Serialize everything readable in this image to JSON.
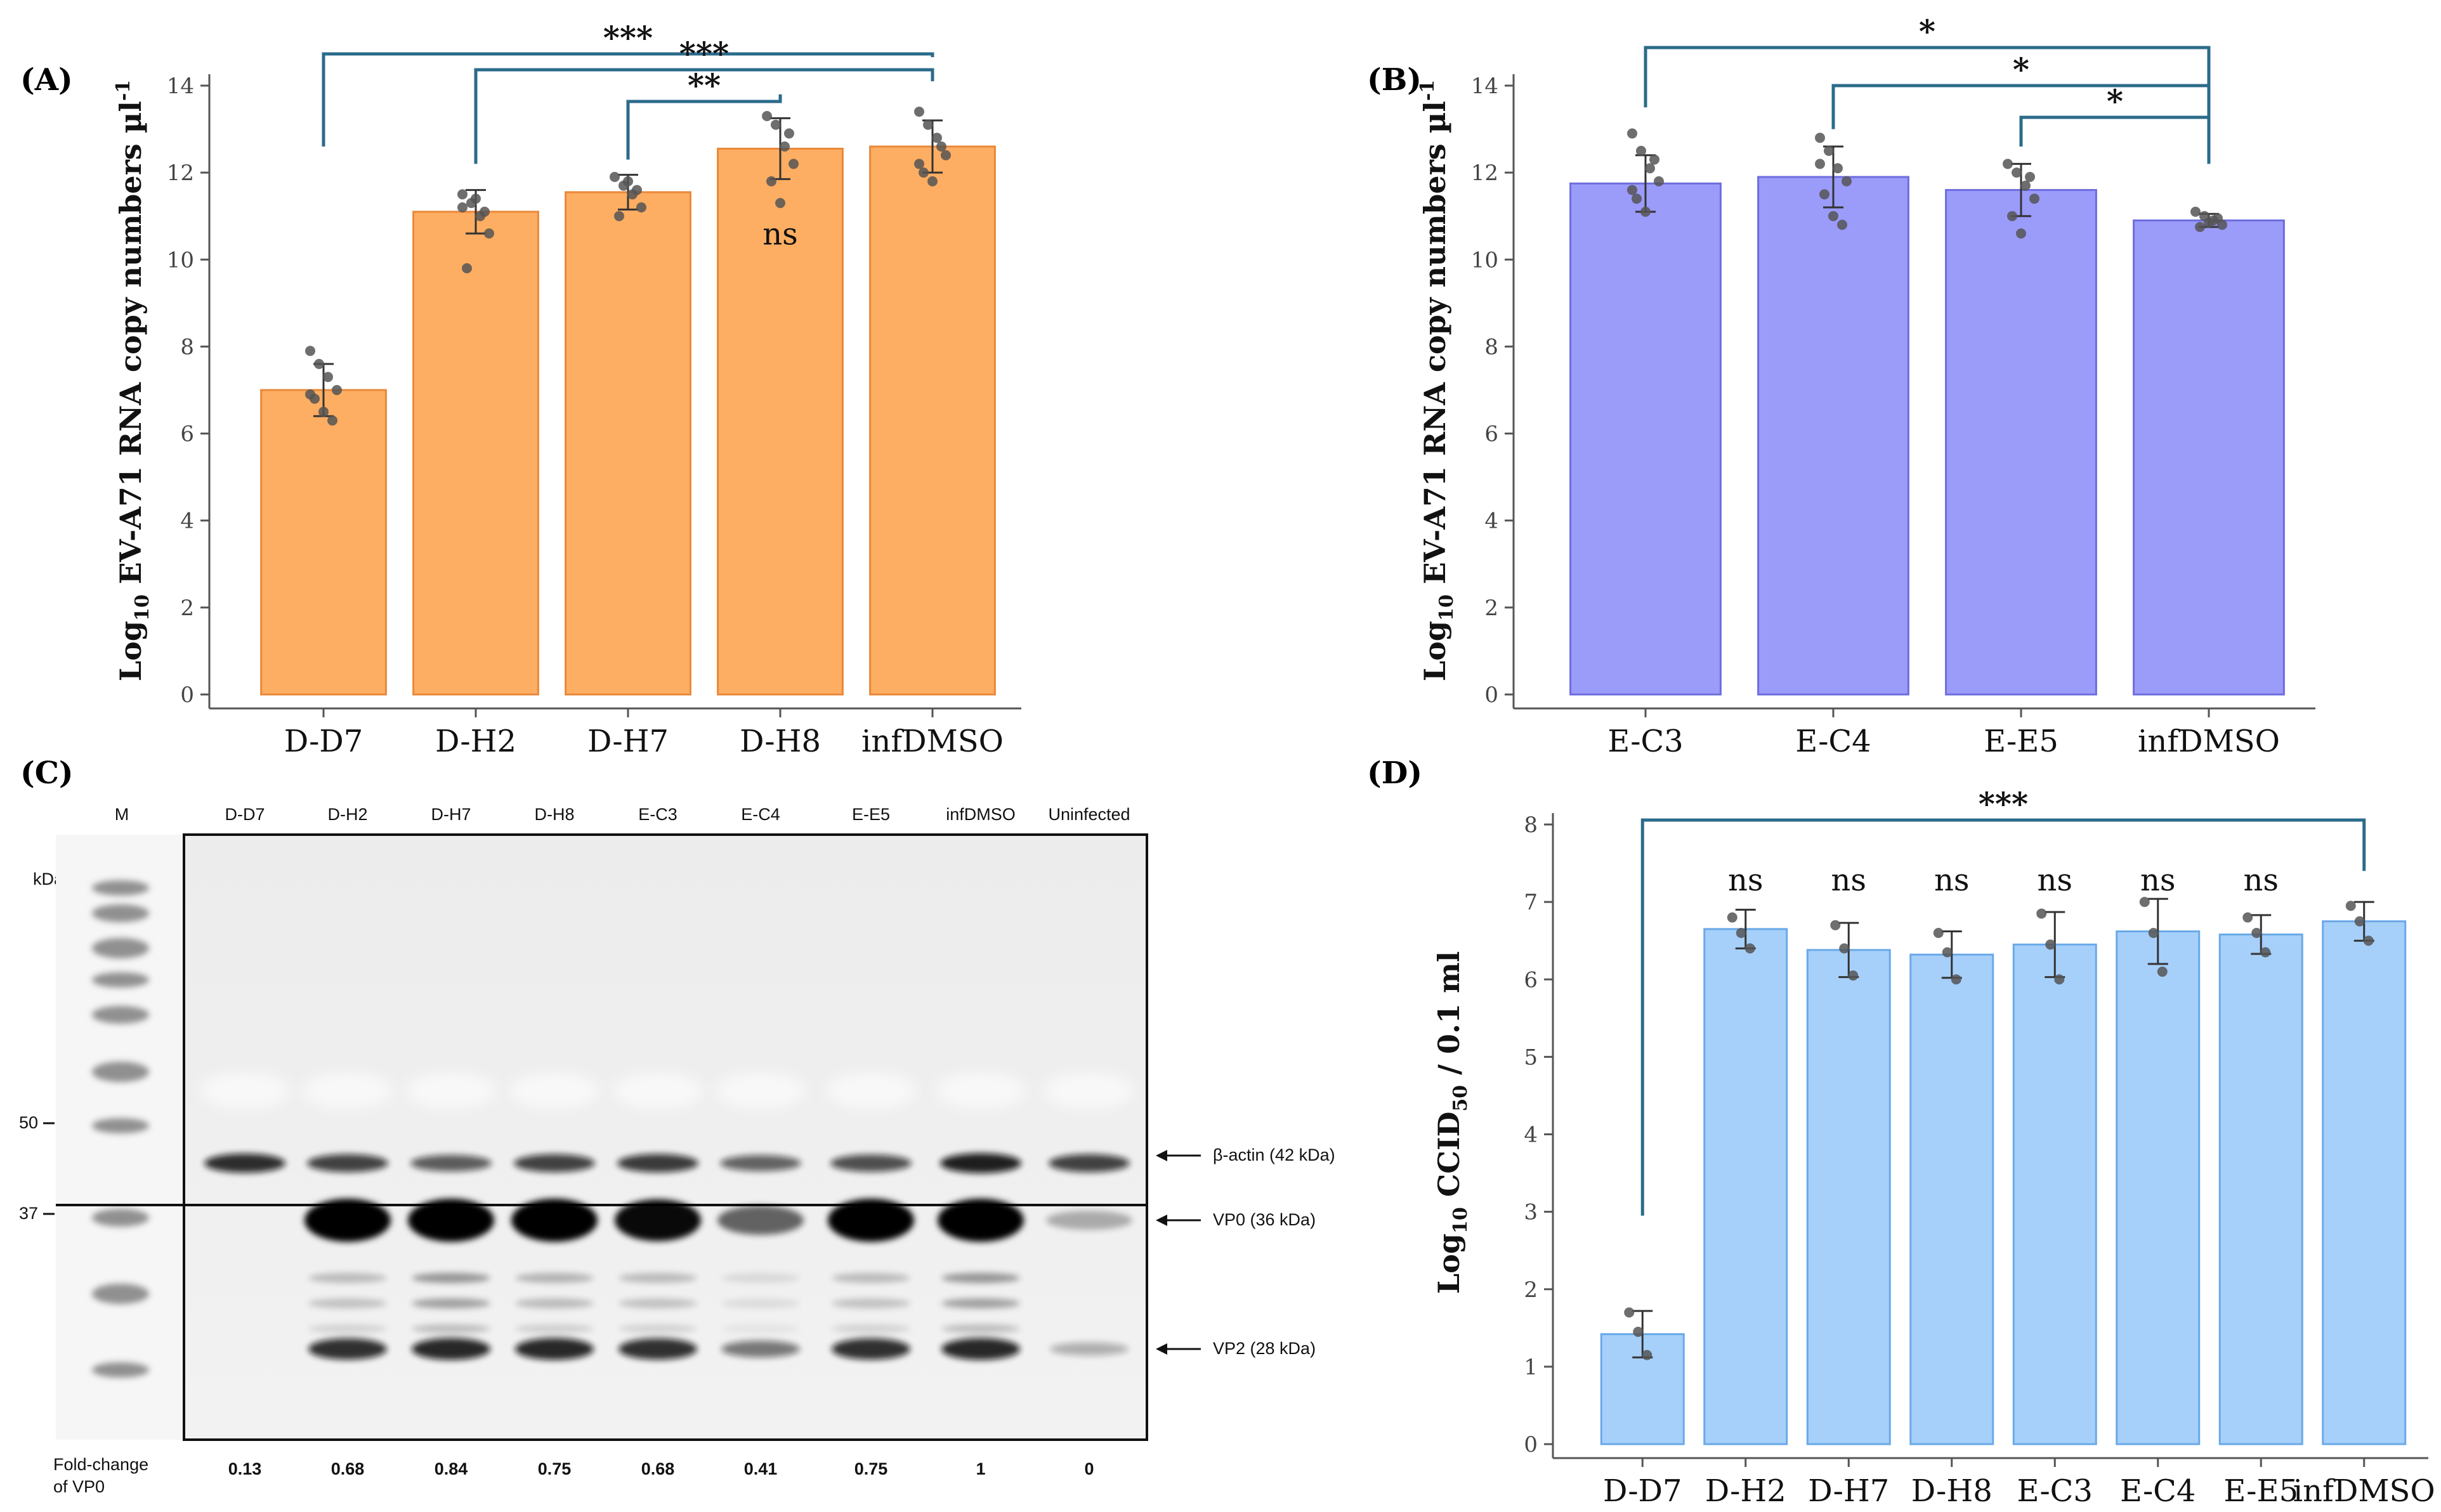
{
  "chart_data": [
    {
      "panel": "(A)",
      "type": "bar",
      "ylabel_base": "Log",
      "ylabel_sub": "10",
      "ylabel_main": " EV-A71 RNA copy numbers µl",
      "ylabel_sup": "-1",
      "ylim": [
        0,
        14
      ],
      "yticks": [
        "0",
        "2",
        "4",
        "6",
        "8",
        "10",
        "12",
        "14"
      ],
      "categories": [
        "D-D7",
        "D-H2",
        "D-H7",
        "D-H8",
        "infDMSO"
      ],
      "values": [
        7.0,
        11.1,
        11.55,
        12.55,
        12.6
      ],
      "errors": [
        0.6,
        0.5,
        0.4,
        0.7,
        0.6
      ],
      "points": [
        [
          7.9,
          7.6,
          7.3,
          7.0,
          6.8,
          6.5,
          6.3,
          6.9
        ],
        [
          11.5,
          11.3,
          11.0,
          10.6,
          9.8,
          11.4,
          11.1,
          11.2
        ],
        [
          11.9,
          11.7,
          11.5,
          11.2,
          11.0,
          11.8,
          11.6
        ],
        [
          13.3,
          13.1,
          12.6,
          12.2,
          11.8,
          11.3,
          12.9
        ],
        [
          13.4,
          13.1,
          12.8,
          12.4,
          12.0,
          11.8,
          12.6,
          12.2
        ]
      ],
      "bar_color": "#fdae62",
      "bar_edge": "#e9883a",
      "annotations": [
        {
          "from": "D-D7",
          "to": "infDMSO",
          "label": "***"
        },
        {
          "from": "D-H2",
          "to": "infDMSO",
          "label": "***"
        },
        {
          "from": "D-H7",
          "to": "D-H8",
          "label": "**"
        },
        {
          "at": "D-H8",
          "label": "ns"
        }
      ]
    },
    {
      "panel": "(B)",
      "type": "bar",
      "ylabel_base": "Log",
      "ylabel_sub": "10",
      "ylabel_main": " EV-A71 RNA copy numbers µl",
      "ylabel_sup": "-1",
      "ylim": [
        0,
        14
      ],
      "yticks": [
        "0",
        "2",
        "4",
        "6",
        "8",
        "10",
        "12",
        "14"
      ],
      "categories": [
        "E-C3",
        "E-C4",
        "E-E5",
        "infDMSO"
      ],
      "values": [
        11.75,
        11.9,
        11.6,
        10.9
      ],
      "errors": [
        0.65,
        0.7,
        0.6,
        0.15
      ],
      "points": [
        [
          12.9,
          12.5,
          12.1,
          11.8,
          11.4,
          11.1,
          12.3,
          11.6
        ],
        [
          12.8,
          12.5,
          12.1,
          11.8,
          11.5,
          11.0,
          10.8,
          12.2
        ],
        [
          12.2,
          12.0,
          11.7,
          11.4,
          11.0,
          10.6,
          11.9
        ],
        [
          11.1,
          11.0,
          10.9,
          10.8,
          10.75,
          10.85,
          10.95
        ]
      ],
      "bar_color": "#9b9bfa",
      "bar_edge": "#6d6ddd",
      "annotations": [
        {
          "from": "E-C3",
          "to": "infDMSO",
          "label": "*"
        },
        {
          "from": "E-C4",
          "to": "infDMSO",
          "label": "*"
        },
        {
          "from": "E-E5",
          "to": "infDMSO",
          "label": "*"
        }
      ]
    },
    {
      "panel": "(D)",
      "type": "bar",
      "ylabel_base": "Log",
      "ylabel_sub": "10",
      "ylabel_main": " CCID",
      "ylabel_sub2": "50",
      "ylabel_tail": " / 0.1 ml",
      "ylim": [
        0,
        8
      ],
      "yticks": [
        "0",
        "1",
        "2",
        "3",
        "4",
        "5",
        "6",
        "7",
        "8"
      ],
      "categories": [
        "D-D7",
        "D-H2",
        "D-H7",
        "D-H8",
        "E-C3",
        "E-C4",
        "E-E5",
        "infDMSO"
      ],
      "values": [
        1.42,
        6.65,
        6.38,
        6.32,
        6.45,
        6.62,
        6.58,
        6.75
      ],
      "errors": [
        0.3,
        0.25,
        0.35,
        0.3,
        0.42,
        0.42,
        0.25,
        0.25
      ],
      "points": [
        [
          1.7,
          1.45,
          1.15
        ],
        [
          6.8,
          6.6,
          6.4
        ],
        [
          6.7,
          6.4,
          6.05
        ],
        [
          6.6,
          6.35,
          6.0
        ],
        [
          6.85,
          6.45,
          6.0
        ],
        [
          7.0,
          6.6,
          6.1
        ],
        [
          6.8,
          6.6,
          6.35
        ],
        [
          6.95,
          6.75,
          6.5
        ]
      ],
      "bar_color": "#a6d0fa",
      "bar_edge": "#6aa9e8",
      "annotations": [
        {
          "from": "D-D7",
          "to": "infDMSO",
          "label": "***"
        },
        {
          "at": "D-H2",
          "label": "ns"
        },
        {
          "at": "D-H7",
          "label": "ns"
        },
        {
          "at": "D-H8",
          "label": "ns"
        },
        {
          "at": "E-C3",
          "label": "ns"
        },
        {
          "at": "E-C4",
          "label": "ns"
        },
        {
          "at": "E-E5",
          "label": "ns"
        }
      ]
    }
  ],
  "western_blot": {
    "panel": "(C)",
    "marker_lane": "M",
    "lanes": [
      "D-D7",
      "D-H2",
      "D-H7",
      "D-H8",
      "E-C3",
      "E-C4",
      "E-E5",
      "infDMSO",
      "Uninfected"
    ],
    "kda_label": "kDa",
    "markers": [
      "50",
      "37"
    ],
    "bands": [
      "β-actin (42 kDa)",
      "VP0 (36 kDa)",
      "VP2 (28 kDa)"
    ],
    "fold_label_line1": "Fold-change",
    "fold_label_line2": "of VP0",
    "fold_change": [
      "0.13",
      "0.68",
      "0.84",
      "0.75",
      "0.68",
      "0.41",
      "0.75",
      "1",
      "0"
    ],
    "actin_intensity": [
      0.85,
      0.7,
      0.5,
      0.7,
      0.75,
      0.45,
      0.6,
      0.95,
      0.7
    ],
    "vp0_intensity": [
      0.0,
      1.0,
      1.0,
      1.0,
      0.95,
      0.45,
      1.0,
      1.0,
      0.05
    ],
    "vp2_intensity": [
      0.0,
      0.85,
      0.9,
      0.9,
      0.85,
      0.4,
      0.85,
      0.9,
      0.05
    ],
    "mid_bands_intensity": [
      0.0,
      0.35,
      0.6,
      0.4,
      0.35,
      0.15,
      0.35,
      0.6,
      0.0
    ]
  }
}
